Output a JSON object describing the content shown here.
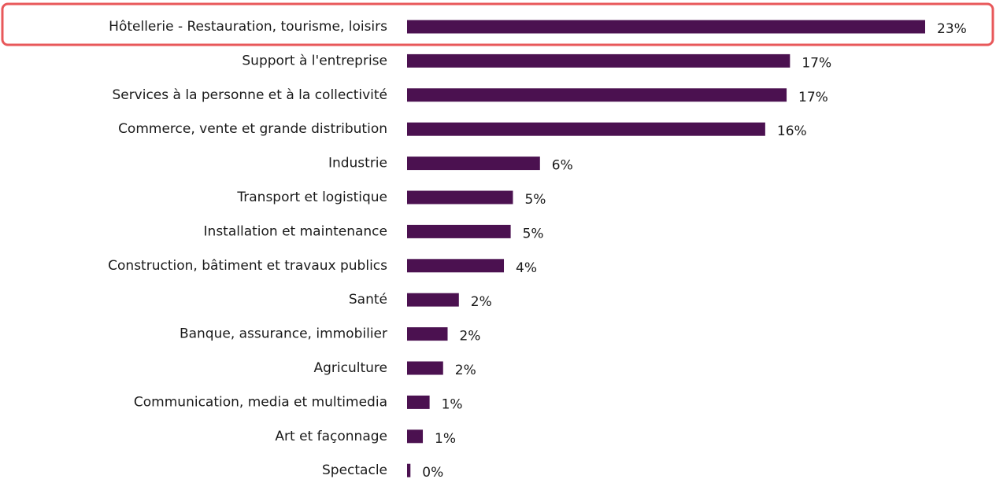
{
  "chart_data": {
    "type": "bar",
    "orientation": "horizontal",
    "categories": [
      "Hôtellerie - Restauration, tourisme, loisirs",
      "Support à l'entreprise",
      "Services à la personne et à la collectivité",
      "Commerce, vente et grande distribution",
      "Industrie",
      "Transport et logistique",
      "Installation et maintenance",
      "Construction, bâtiment et travaux publics",
      "Santé",
      "Banque, assurance, immobilier",
      "Agriculture",
      "Communication, media et multimedia",
      "Art et façonnage",
      "Spectacle"
    ],
    "values": [
      23,
      17,
      16.85,
      15.9,
      5.9,
      4.7,
      4.6,
      4.3,
      2.3,
      1.8,
      1.6,
      1.0,
      0.7,
      0.15
    ],
    "value_labels": [
      "23%",
      "17%",
      "17%",
      "16%",
      "6%",
      "5%",
      "5%",
      "4%",
      "2%",
      "2%",
      "2%",
      "1%",
      "1%",
      "0%"
    ],
    "color": "#4b1150"
  }
}
